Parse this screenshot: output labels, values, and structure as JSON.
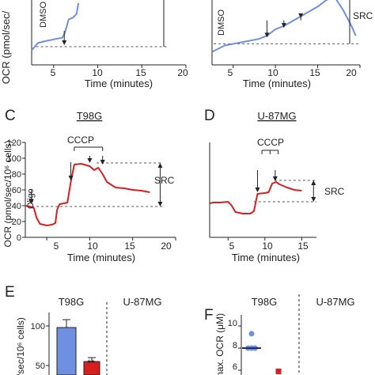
{
  "colors": {
    "blue": "#6f8fe0",
    "red": "#d81f1f",
    "axis": "#222222",
    "dash": "#555555"
  },
  "panels": [
    {
      "id": "A",
      "letter": "",
      "title": "",
      "xlabel": "Time (minutes)",
      "ylabel": "OCR (pmol/sec/",
      "xticks": [
        "5",
        "10",
        "15",
        "20"
      ],
      "annotations": {
        "drug": "DMSO"
      }
    },
    {
      "id": "B",
      "letter": "",
      "title": "",
      "xlabel": "Time (minutes)",
      "xticks": [
        "5",
        "10",
        "15",
        "20"
      ],
      "annotations": {
        "drug": "DMSO",
        "src": "SRC"
      }
    },
    {
      "id": "C",
      "letter": "C",
      "title": "T98G",
      "xlabel": "Time (minutes)",
      "ylabel": "OCR (pmol/sec/10⁶ cells)",
      "xticks": [
        "5",
        "10",
        "15",
        "20"
      ],
      "yticks": [
        "0",
        "20",
        "40",
        "60",
        "80",
        "100",
        "120"
      ],
      "annotations": {
        "oligo": "Oligo",
        "cccp": "CCCP",
        "src": "SRC"
      }
    },
    {
      "id": "D",
      "letter": "D",
      "title": "U-87MG",
      "xlabel": "Time (minutes)",
      "xticks": [
        "5",
        "10",
        "15"
      ],
      "annotations": {
        "cccp": "CCCP",
        "src": "SRC"
      }
    },
    {
      "id": "E",
      "letter": "E",
      "title_left": "T98G",
      "title_right": "U-87MG",
      "ylabel": "l/sec/10⁶ cells)",
      "yticks": [
        "100",
        "50"
      ],
      "sig": "**"
    },
    {
      "id": "F",
      "letter": "F",
      "title_left": "T98G",
      "title_right": "U-87MG",
      "ylabel": "max. OCR (μM)",
      "yticks": [
        "10",
        "8",
        "6"
      ]
    }
  ],
  "chart_data": [
    {
      "panel": "A",
      "type": "line",
      "xlim": [
        2.5,
        20
      ],
      "series": [
        {
          "color": "#6f8fe0",
          "x": [
            2.5,
            3.2,
            4,
            5,
            6,
            6.3,
            6.7,
            7.2,
            7.6,
            7.8
          ],
          "y": [
            38,
            42,
            43,
            44,
            45,
            48,
            55,
            56,
            58,
            64
          ]
        }
      ],
      "baseline": 40,
      "injection_time": 6.2
    },
    {
      "panel": "B",
      "type": "line",
      "xlim": [
        2.5,
        20
      ],
      "series": [
        {
          "color": "#6f8fe0",
          "x": [
            2.5,
            4,
            6,
            8,
            9,
            10,
            11,
            12,
            13,
            14,
            15,
            16,
            17,
            18,
            19,
            19.5
          ],
          "y": [
            38,
            42,
            44,
            46,
            48,
            52,
            54,
            57,
            60,
            63,
            66,
            70,
            72,
            64,
            54,
            48
          ]
        }
      ],
      "baseline": 43
    },
    {
      "panel": "C",
      "type": "line",
      "xlim": [
        2.5,
        20
      ],
      "ylim": [
        0,
        120
      ],
      "series": [
        {
          "color": "#d81f1f",
          "x": [
            2.5,
            3,
            3.5,
            3.8,
            4.2,
            5,
            5.6,
            6,
            6.2,
            6.5,
            7,
            7.4,
            7.8,
            8.2,
            9,
            10,
            10.5,
            11,
            11.5,
            12,
            13,
            14,
            15,
            16,
            17
          ],
          "y": [
            40,
            39,
            37,
            25,
            17,
            15,
            16,
            18,
            35,
            42,
            43,
            44,
            70,
            92,
            93,
            90,
            85,
            88,
            80,
            70,
            63,
            62,
            60,
            59,
            57
          ]
        }
      ],
      "baseline": 39,
      "max_dash": 94,
      "cccp_times": [
        8.2,
        10,
        11.5
      ]
    },
    {
      "panel": "D",
      "type": "line",
      "xlim": [
        2.5,
        17
      ],
      "series": [
        {
          "color": "#d81f1f",
          "x": [
            2.5,
            3,
            4,
            5,
            5.5,
            6,
            7,
            8,
            8.5,
            9,
            10,
            10.5,
            11,
            11.5,
            12,
            13,
            14,
            15
          ],
          "y": [
            43,
            44,
            44,
            45,
            40,
            32,
            30,
            30,
            33,
            55,
            56,
            57,
            68,
            70,
            67,
            63,
            60,
            59
          ]
        }
      ],
      "baseline": 45,
      "max_dash": 72
    },
    {
      "panel": "E",
      "type": "bar",
      "categories": [
        "",
        ""
      ],
      "series": [
        {
          "values": [
            98,
            55
          ],
          "colors": [
            "#6f8fe0",
            "#d81f1f"
          ],
          "errors": [
            10,
            5
          ]
        }
      ],
      "ylim": [
        40,
        140
      ]
    },
    {
      "panel": "F",
      "type": "scatter",
      "series": [
        {
          "color": "#6f8fe0",
          "points": [
            [
              1,
              9.3
            ],
            [
              0.9,
              8
            ],
            [
              1.1,
              8
            ],
            [
              1,
              8
            ]
          ],
          "mean": 8
        },
        {
          "color": "#d81f1f",
          "points": [
            [
              2,
              5.9
            ]
          ]
        }
      ],
      "ylim": [
        5.4,
        11
      ]
    }
  ]
}
